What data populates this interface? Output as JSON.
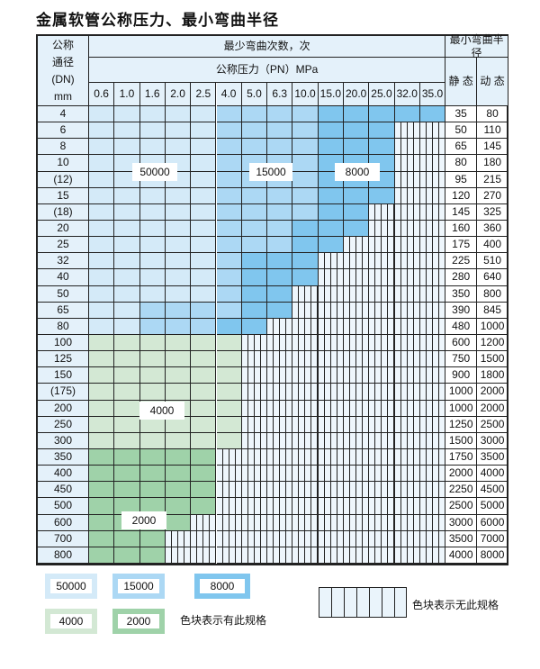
{
  "title": "金属软管公称压力、最小弯曲半径",
  "header": {
    "dn_label": [
      "公称",
      "通径",
      "(DN)",
      "mm"
    ],
    "cycles_label": "最少弯曲次数，次",
    "pressure_label": "公称压力（PN）MPa",
    "radius_label": "最小弯曲半径",
    "static_label": "静 态",
    "dynamic_label": "动 态",
    "pressures": [
      "0.6",
      "1.0",
      "1.6",
      "2.0",
      "2.5",
      "4.0",
      "5.0",
      "6.3",
      "10.0",
      "15.0",
      "20.0",
      "25.0",
      "32.0",
      "35.0"
    ]
  },
  "levels": {
    "A": {
      "value": "50000",
      "color": "#d4eaf8"
    },
    "B": {
      "value": "15000",
      "color": "#acd8f4"
    },
    "C": {
      "value": "8000",
      "color": "#80c6ee"
    },
    "G": {
      "value": "4000",
      "color": "#d3e8d4"
    },
    "H": {
      "value": "2000",
      "color": "#9fd2a9"
    }
  },
  "rows": [
    {
      "dn": "4",
      "static": "35",
      "dynamic": "80",
      "cells": "AAAAABBBBCCCCC"
    },
    {
      "dn": "6",
      "static": "50",
      "dynamic": "110",
      "cells": "AAAAABBBBCCC"
    },
    {
      "dn": "8",
      "static": "65",
      "dynamic": "145",
      "cells": "AAAAABBBBCCC"
    },
    {
      "dn": "10",
      "static": "80",
      "dynamic": "180",
      "cells": "AAAAABBBBCCC"
    },
    {
      "dn": "(12)",
      "static": "95",
      "dynamic": "215",
      "cells": "AAAAABBBBCCC"
    },
    {
      "dn": "15",
      "static": "120",
      "dynamic": "270",
      "cells": "AAAAABBBBCCC"
    },
    {
      "dn": "(18)",
      "static": "145",
      "dynamic": "325",
      "cells": "AAAAABBBBCC"
    },
    {
      "dn": "20",
      "static": "160",
      "dynamic": "360",
      "cells": "AAAAABBBCCC"
    },
    {
      "dn": "25",
      "static": "175",
      "dynamic": "400",
      "cells": "AAAAABBBCC"
    },
    {
      "dn": "32",
      "static": "225",
      "dynamic": "510",
      "cells": "AAAAABCCC"
    },
    {
      "dn": "40",
      "static": "280",
      "dynamic": "640",
      "cells": "AAAAABCCC"
    },
    {
      "dn": "50",
      "static": "350",
      "dynamic": "800",
      "cells": "AAAAABCC"
    },
    {
      "dn": "65",
      "static": "390",
      "dynamic": "845",
      "cells": "AABBBBCC"
    },
    {
      "dn": "80",
      "static": "480",
      "dynamic": "1000",
      "cells": "AABBBCC"
    },
    {
      "dn": "100",
      "static": "600",
      "dynamic": "1200",
      "cells": "GGGGGG"
    },
    {
      "dn": "125",
      "static": "750",
      "dynamic": "1500",
      "cells": "GGGGGG"
    },
    {
      "dn": "150",
      "static": "900",
      "dynamic": "1800",
      "cells": "GGGGGG"
    },
    {
      "dn": "(175)",
      "static": "1000",
      "dynamic": "2000",
      "cells": "GGGGGG"
    },
    {
      "dn": "200",
      "static": "1000",
      "dynamic": "2000",
      "cells": "GGGGGG"
    },
    {
      "dn": "250",
      "static": "1250",
      "dynamic": "2500",
      "cells": "GGGGGG"
    },
    {
      "dn": "300",
      "static": "1500",
      "dynamic": "3000",
      "cells": "GGGGGG"
    },
    {
      "dn": "350",
      "static": "1750",
      "dynamic": "3500",
      "cells": "HHHHH"
    },
    {
      "dn": "400",
      "static": "2000",
      "dynamic": "4000",
      "cells": "HHHHH"
    },
    {
      "dn": "450",
      "static": "2250",
      "dynamic": "4500",
      "cells": "HHHHH"
    },
    {
      "dn": "500",
      "static": "2500",
      "dynamic": "5000",
      "cells": "HHHHH"
    },
    {
      "dn": "600",
      "static": "3000",
      "dynamic": "6000",
      "cells": "HHHH"
    },
    {
      "dn": "700",
      "static": "3500",
      "dynamic": "7000",
      "cells": "HHH"
    },
    {
      "dn": "800",
      "static": "4000",
      "dynamic": "8000",
      "cells": "HHH"
    }
  ],
  "legend": {
    "available_text": "色块表示有此规格",
    "unavailable_text": "色块表示无此规格"
  }
}
